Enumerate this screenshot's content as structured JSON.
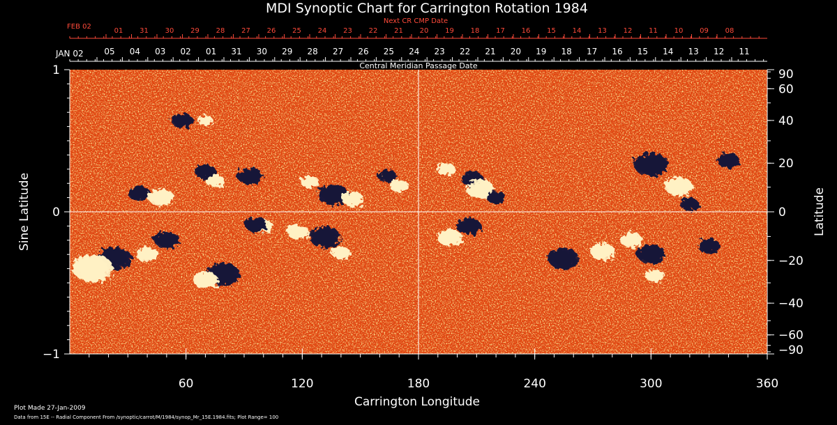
{
  "chart_data": {
    "type": "heatmap",
    "title": "MDI Synoptic Chart for Carrington Rotation 1984",
    "top_axis_label": "Next CR CMP Date",
    "top_axis_start_label": "FEB 02",
    "top_axis_ticks": [
      "01",
      "31",
      "30",
      "29",
      "28",
      "27",
      "26",
      "25",
      "24",
      "23",
      "22",
      "21",
      "20",
      "19",
      "18",
      "17",
      "16",
      "15",
      "14",
      "13",
      "12",
      "11",
      "10",
      "09",
      "08"
    ],
    "cmp_axis_label": "Central Meridian Passage Date",
    "cmp_axis_start_label": "JAN 02",
    "cmp_axis_ticks": [
      "05",
      "04",
      "03",
      "02",
      "01",
      "31",
      "30",
      "29",
      "28",
      "27",
      "26",
      "25",
      "24",
      "23",
      "22",
      "21",
      "20",
      "19",
      "18",
      "17",
      "16",
      "15",
      "14",
      "13",
      "12",
      "11"
    ],
    "xlabel": "Carrington Longitude",
    "xlim": [
      0,
      360
    ],
    "x_ticks": [
      "60",
      "120",
      "180",
      "240",
      "300",
      "360"
    ],
    "ylabel_left": "Sine Latitude",
    "ylim": [
      -1,
      1
    ],
    "y_ticks_left": [
      "1",
      "0",
      "−1"
    ],
    "ylabel_right": "Latitude",
    "y_ticks_right": [
      "90",
      "60",
      "40",
      "20",
      "0",
      "−20",
      "−40",
      "−60",
      "−90"
    ],
    "grid": "center crosshair at longitude 180 and latitude 0",
    "regions": [
      {
        "polarity": "negative",
        "lon": 58,
        "sinlat": 0.64,
        "size": 14
      },
      {
        "polarity": "negative",
        "lon": 36,
        "sinlat": 0.13,
        "size": 14
      },
      {
        "polarity": "positive",
        "lon": 47,
        "sinlat": 0.1,
        "size": 16
      },
      {
        "polarity": "positive",
        "lon": 70,
        "sinlat": 0.64,
        "size": 10
      },
      {
        "polarity": "negative",
        "lon": 70,
        "sinlat": 0.28,
        "size": 14
      },
      {
        "polarity": "positive",
        "lon": 75,
        "sinlat": 0.22,
        "size": 12
      },
      {
        "polarity": "negative",
        "lon": 93,
        "sinlat": 0.25,
        "size": 16
      },
      {
        "polarity": "negative",
        "lon": 136,
        "sinlat": 0.12,
        "size": 20
      },
      {
        "polarity": "positive",
        "lon": 146,
        "sinlat": 0.09,
        "size": 14
      },
      {
        "polarity": "positive",
        "lon": 124,
        "sinlat": 0.21,
        "size": 12
      },
      {
        "polarity": "negative",
        "lon": 164,
        "sinlat": 0.25,
        "size": 12
      },
      {
        "polarity": "positive",
        "lon": 170,
        "sinlat": 0.18,
        "size": 12
      },
      {
        "polarity": "negative",
        "lon": 23,
        "sinlat": -0.33,
        "size": 22
      },
      {
        "polarity": "positive",
        "lon": 12,
        "sinlat": -0.4,
        "size": 26
      },
      {
        "polarity": "negative",
        "lon": 50,
        "sinlat": -0.2,
        "size": 16
      },
      {
        "polarity": "positive",
        "lon": 40,
        "sinlat": -0.3,
        "size": 14
      },
      {
        "polarity": "negative",
        "lon": 79,
        "sinlat": -0.44,
        "size": 22
      },
      {
        "polarity": "positive",
        "lon": 70,
        "sinlat": -0.48,
        "size": 16
      },
      {
        "polarity": "positive",
        "lon": 100,
        "sinlat": -0.1,
        "size": 12
      },
      {
        "polarity": "negative",
        "lon": 96,
        "sinlat": -0.09,
        "size": 14
      },
      {
        "polarity": "negative",
        "lon": 132,
        "sinlat": -0.18,
        "size": 20
      },
      {
        "polarity": "positive",
        "lon": 118,
        "sinlat": -0.14,
        "size": 14
      },
      {
        "polarity": "positive",
        "lon": 140,
        "sinlat": -0.29,
        "size": 12
      },
      {
        "polarity": "negative",
        "lon": 208,
        "sinlat": 0.23,
        "size": 14
      },
      {
        "polarity": "positive",
        "lon": 212,
        "sinlat": 0.16,
        "size": 18
      },
      {
        "polarity": "positive",
        "lon": 194,
        "sinlat": 0.3,
        "size": 12
      },
      {
        "polarity": "negative",
        "lon": 220,
        "sinlat": 0.1,
        "size": 12
      },
      {
        "polarity": "negative",
        "lon": 300,
        "sinlat": 0.33,
        "size": 22
      },
      {
        "polarity": "positive",
        "lon": 314,
        "sinlat": 0.18,
        "size": 18
      },
      {
        "polarity": "negative",
        "lon": 320,
        "sinlat": 0.05,
        "size": 12
      },
      {
        "polarity": "negative",
        "lon": 340,
        "sinlat": 0.36,
        "size": 14
      },
      {
        "polarity": "negative",
        "lon": 206,
        "sinlat": -0.1,
        "size": 16
      },
      {
        "polarity": "positive",
        "lon": 196,
        "sinlat": -0.18,
        "size": 16
      },
      {
        "polarity": "negative",
        "lon": 255,
        "sinlat": -0.33,
        "size": 20
      },
      {
        "polarity": "positive",
        "lon": 275,
        "sinlat": -0.28,
        "size": 16
      },
      {
        "polarity": "negative",
        "lon": 300,
        "sinlat": -0.3,
        "size": 18
      },
      {
        "polarity": "positive",
        "lon": 290,
        "sinlat": -0.2,
        "size": 14
      },
      {
        "polarity": "positive",
        "lon": 302,
        "sinlat": -0.45,
        "size": 12
      },
      {
        "polarity": "negative",
        "lon": 330,
        "sinlat": -0.24,
        "size": 14
      }
    ]
  },
  "footer": {
    "plot_made": "Plot Made 27-Jan-2009",
    "data_from": "Data from 15E -- Radial Component From /synoptic/carrot/M/1984/synop_Mr_15E.1984.fits; Plot Range=  100"
  },
  "colors": {
    "background": "#000000",
    "map_base": "#e2440e",
    "positive": "#fff1c4",
    "negative": "#17143a",
    "accent_red": "#ff4a3a",
    "text": "#ffffff"
  }
}
